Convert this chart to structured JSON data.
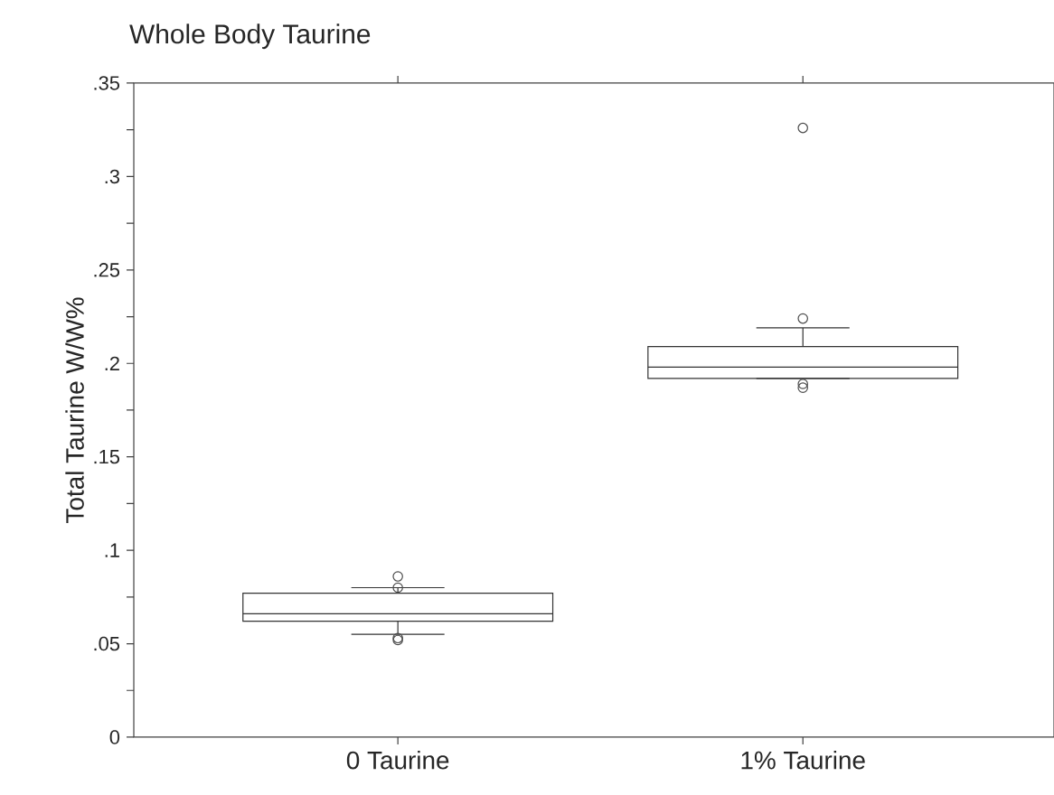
{
  "chart_data": {
    "type": "box",
    "title": "Whole Body Taurine",
    "ylabel": "Total Taurine W/W%",
    "categories": [
      "0 Taurine",
      "1% Taurine"
    ],
    "boxes": [
      {
        "low": 0.055,
        "q1": 0.062,
        "median": 0.066,
        "q3": 0.077,
        "high": 0.08,
        "outliers": [
          0.086,
          0.08,
          0.053,
          0.052
        ]
      },
      {
        "low": 0.192,
        "q1": 0.192,
        "median": 0.198,
        "q3": 0.209,
        "high": 0.219,
        "outliers": [
          0.326,
          0.224,
          0.189,
          0.187
        ]
      }
    ],
    "ylim": [
      0,
      0.35
    ],
    "yticks": [
      0,
      {
        "value": 0.025,
        "label": null
      },
      {
        "value": 0.05,
        "label": ".05"
      },
      {
        "value": 0.075,
        "label": null
      },
      {
        "value": 0.1,
        "label": ".1"
      },
      {
        "value": 0.125,
        "label": null
      },
      {
        "value": 0.15,
        "label": ".15"
      },
      {
        "value": 0.175,
        "label": null
      },
      {
        "value": 0.2,
        "label": ".2"
      },
      {
        "value": 0.225,
        "label": null
      },
      {
        "value": 0.25,
        "label": ".25"
      },
      {
        "value": 0.275,
        "label": null
      },
      {
        "value": 0.3,
        "label": ".3"
      },
      {
        "value": 0.325,
        "label": null
      },
      {
        "value": 0.35,
        "label": ".35"
      }
    ],
    "marker": "circle",
    "grid": false
  }
}
